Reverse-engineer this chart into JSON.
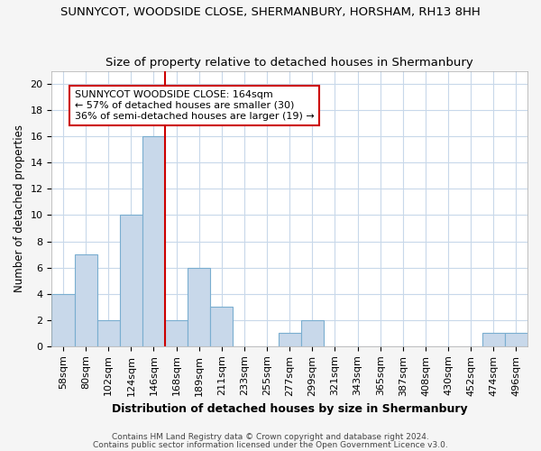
{
  "title": "SUNNYCOT, WOODSIDE CLOSE, SHERMANBURY, HORSHAM, RH13 8HH",
  "subtitle": "Size of property relative to detached houses in Shermanbury",
  "xlabel": "Distribution of detached houses by size in Shermanbury",
  "ylabel": "Number of detached properties",
  "bin_labels": [
    "58sqm",
    "80sqm",
    "102sqm",
    "124sqm",
    "146sqm",
    "168sqm",
    "189sqm",
    "211sqm",
    "233sqm",
    "255sqm",
    "277sqm",
    "299sqm",
    "321sqm",
    "343sqm",
    "365sqm",
    "387sqm",
    "408sqm",
    "430sqm",
    "452sqm",
    "474sqm",
    "496sqm"
  ],
  "bar_heights": [
    4,
    7,
    2,
    10,
    16,
    2,
    6,
    3,
    0,
    0,
    1,
    2,
    0,
    0,
    0,
    0,
    0,
    0,
    0,
    1,
    1
  ],
  "bar_color": "#c8d8ea",
  "bar_edge_color": "#7aaed0",
  "vline_x": 4.5,
  "vline_color": "#cc0000",
  "annotation_text": "SUNNYCOT WOODSIDE CLOSE: 164sqm\n← 57% of detached houses are smaller (30)\n36% of semi-detached houses are larger (19) →",
  "annotation_box_color": "#ffffff",
  "annotation_box_edge_color": "#cc0000",
  "yticks": [
    0,
    2,
    4,
    6,
    8,
    10,
    12,
    14,
    16,
    18,
    20
  ],
  "ylim": [
    0,
    21
  ],
  "footnote1": "Contains HM Land Registry data © Crown copyright and database right 2024.",
  "footnote2": "Contains public sector information licensed under the Open Government Licence v3.0.",
  "background_color": "#f5f5f5",
  "plot_bg_color": "#ffffff",
  "title_fontsize": 9.5,
  "subtitle_fontsize": 9.5,
  "xlabel_fontsize": 9,
  "ylabel_fontsize": 8.5,
  "tick_fontsize": 8,
  "annotation_fontsize": 8,
  "footnote_fontsize": 6.5
}
